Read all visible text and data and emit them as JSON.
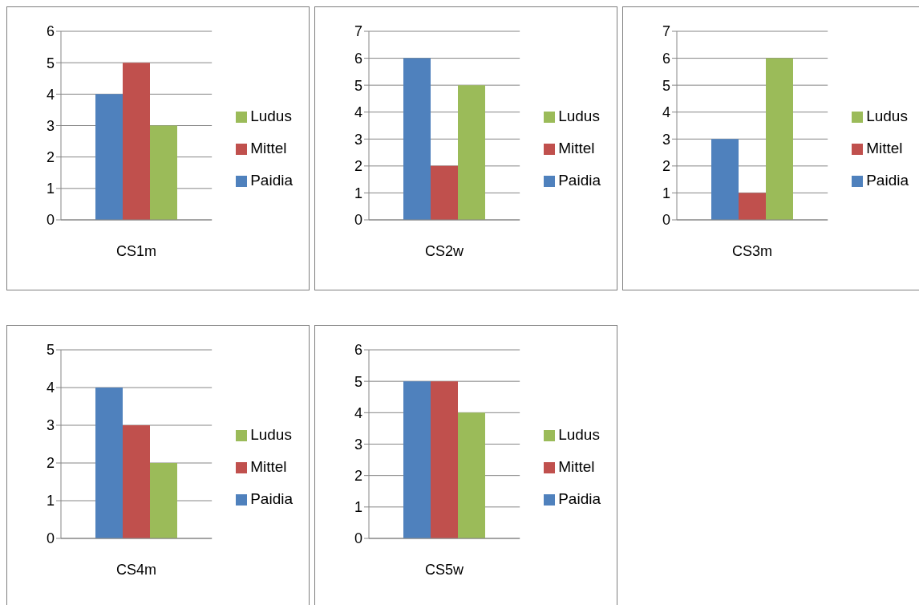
{
  "chart_data": [
    {
      "type": "bar",
      "categories": [
        "CS1m"
      ],
      "series": [
        {
          "name": "Paidia",
          "color": "#4f81bd",
          "values": [
            4
          ]
        },
        {
          "name": "Mittel",
          "color": "#c0504d",
          "values": [
            5
          ]
        },
        {
          "name": "Ludus",
          "color": "#9bbb59",
          "values": [
            3
          ]
        }
      ],
      "ylim": [
        0,
        6
      ],
      "yticks": [
        0,
        1,
        2,
        3,
        4,
        5,
        6
      ],
      "grid": "y",
      "legend": "right"
    },
    {
      "type": "bar",
      "categories": [
        "CS2w"
      ],
      "series": [
        {
          "name": "Paidia",
          "color": "#4f81bd",
          "values": [
            6
          ]
        },
        {
          "name": "Mittel",
          "color": "#c0504d",
          "values": [
            2
          ]
        },
        {
          "name": "Ludus",
          "color": "#9bbb59",
          "values": [
            5
          ]
        }
      ],
      "ylim": [
        0,
        7
      ],
      "yticks": [
        0,
        1,
        2,
        3,
        4,
        5,
        6,
        7
      ],
      "grid": "y",
      "legend": "right"
    },
    {
      "type": "bar",
      "categories": [
        "CS3m"
      ],
      "series": [
        {
          "name": "Paidia",
          "color": "#4f81bd",
          "values": [
            3
          ]
        },
        {
          "name": "Mittel",
          "color": "#c0504d",
          "values": [
            1
          ]
        },
        {
          "name": "Ludus",
          "color": "#9bbb59",
          "values": [
            6
          ]
        }
      ],
      "ylim": [
        0,
        7
      ],
      "yticks": [
        0,
        1,
        2,
        3,
        4,
        5,
        6,
        7
      ],
      "grid": "y",
      "legend": "right"
    },
    {
      "type": "bar",
      "categories": [
        "CS4m"
      ],
      "series": [
        {
          "name": "Paidia",
          "color": "#4f81bd",
          "values": [
            4
          ]
        },
        {
          "name": "Mittel",
          "color": "#c0504d",
          "values": [
            3
          ]
        },
        {
          "name": "Ludus",
          "color": "#9bbb59",
          "values": [
            2
          ]
        }
      ],
      "ylim": [
        0,
        5
      ],
      "yticks": [
        0,
        1,
        2,
        3,
        4,
        5
      ],
      "grid": "y",
      "legend": "right"
    },
    {
      "type": "bar",
      "categories": [
        "CS5w"
      ],
      "series": [
        {
          "name": "Paidia",
          "color": "#4f81bd",
          "values": [
            5
          ]
        },
        {
          "name": "Mittel",
          "color": "#c0504d",
          "values": [
            5
          ]
        },
        {
          "name": "Ludus",
          "color": "#9bbb59",
          "values": [
            4
          ]
        }
      ],
      "ylim": [
        0,
        6
      ],
      "yticks": [
        0,
        1,
        2,
        3,
        4,
        5,
        6
      ],
      "grid": "y",
      "legend": "right"
    }
  ]
}
